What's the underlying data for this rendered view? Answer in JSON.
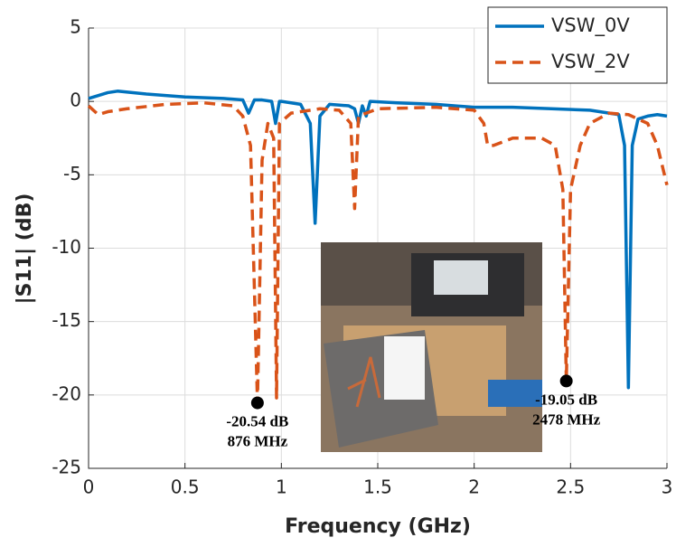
{
  "chart_data": {
    "type": "line",
    "xlabel": "Frequency (GHz)",
    "ylabel": "|S11| (dB)",
    "xlim": [
      0,
      3
    ],
    "xticks": [
      0,
      0.5,
      1,
      1.5,
      2,
      2.5,
      3
    ],
    "ylim": [
      -25,
      5
    ],
    "yticks": [
      5,
      0,
      -5,
      -10,
      -15,
      -20,
      -25
    ],
    "grid": true,
    "legend": "upper right",
    "series": [
      {
        "name": "VSW_0V",
        "color": "#0072bd",
        "dash": false,
        "x": [
          0,
          0.1,
          0.15,
          0.3,
          0.5,
          0.7,
          0.8,
          0.83,
          0.86,
          0.9,
          0.95,
          0.97,
          0.99,
          1.0,
          1.1,
          1.15,
          1.175,
          1.2,
          1.25,
          1.35,
          1.38,
          1.4,
          1.42,
          1.44,
          1.46,
          1.6,
          1.8,
          2.0,
          2.2,
          2.4,
          2.6,
          2.75,
          2.78,
          2.8,
          2.82,
          2.85,
          2.9,
          2.95,
          3.0
        ],
        "values": [
          0.2,
          0.6,
          0.7,
          0.5,
          0.3,
          0.2,
          0.1,
          -0.8,
          0.1,
          0.1,
          0,
          -1.5,
          0,
          0,
          -0.2,
          -1.5,
          -8.3,
          -1,
          -0.2,
          -0.3,
          -0.5,
          -1.5,
          -0.3,
          -1.0,
          0,
          -0.1,
          -0.2,
          -0.4,
          -0.4,
          -0.5,
          -0.6,
          -0.9,
          -3,
          -19.5,
          -3,
          -1.2,
          -1.0,
          -0.9,
          -1.0
        ]
      },
      {
        "name": "VSW_2V",
        "color": "#d95319",
        "dash": true,
        "x": [
          0,
          0.05,
          0.1,
          0.2,
          0.4,
          0.6,
          0.75,
          0.8,
          0.84,
          0.876,
          0.9,
          0.93,
          0.96,
          0.975,
          0.99,
          1.05,
          1.2,
          1.3,
          1.36,
          1.38,
          1.4,
          1.5,
          1.8,
          2.0,
          2.05,
          2.07,
          2.1,
          2.2,
          2.35,
          2.42,
          2.46,
          2.478,
          2.5,
          2.55,
          2.6,
          2.7,
          2.8,
          2.9,
          2.95,
          3.0
        ],
        "values": [
          -0.3,
          -0.9,
          -0.7,
          -0.5,
          -0.2,
          -0.1,
          -0.3,
          -1,
          -3,
          -20.54,
          -4,
          -1.5,
          -2.5,
          -20.2,
          -1.5,
          -0.8,
          -0.5,
          -0.6,
          -1.5,
          -7.3,
          -1,
          -0.5,
          -0.4,
          -0.6,
          -1.5,
          -3,
          -3,
          -2.5,
          -2.5,
          -3,
          -6,
          -19.05,
          -6,
          -3,
          -1.5,
          -0.8,
          -0.9,
          -1.5,
          -3,
          -5.7
        ]
      }
    ],
    "annotations": [
      {
        "x": 0.876,
        "y": -20.54,
        "text": [
          "-20.54 dB",
          "876 MHz"
        ]
      },
      {
        "x": 2.478,
        "y": -19.05,
        "text": [
          "-19.05 dB",
          "2478 MHz"
        ]
      }
    ]
  }
}
